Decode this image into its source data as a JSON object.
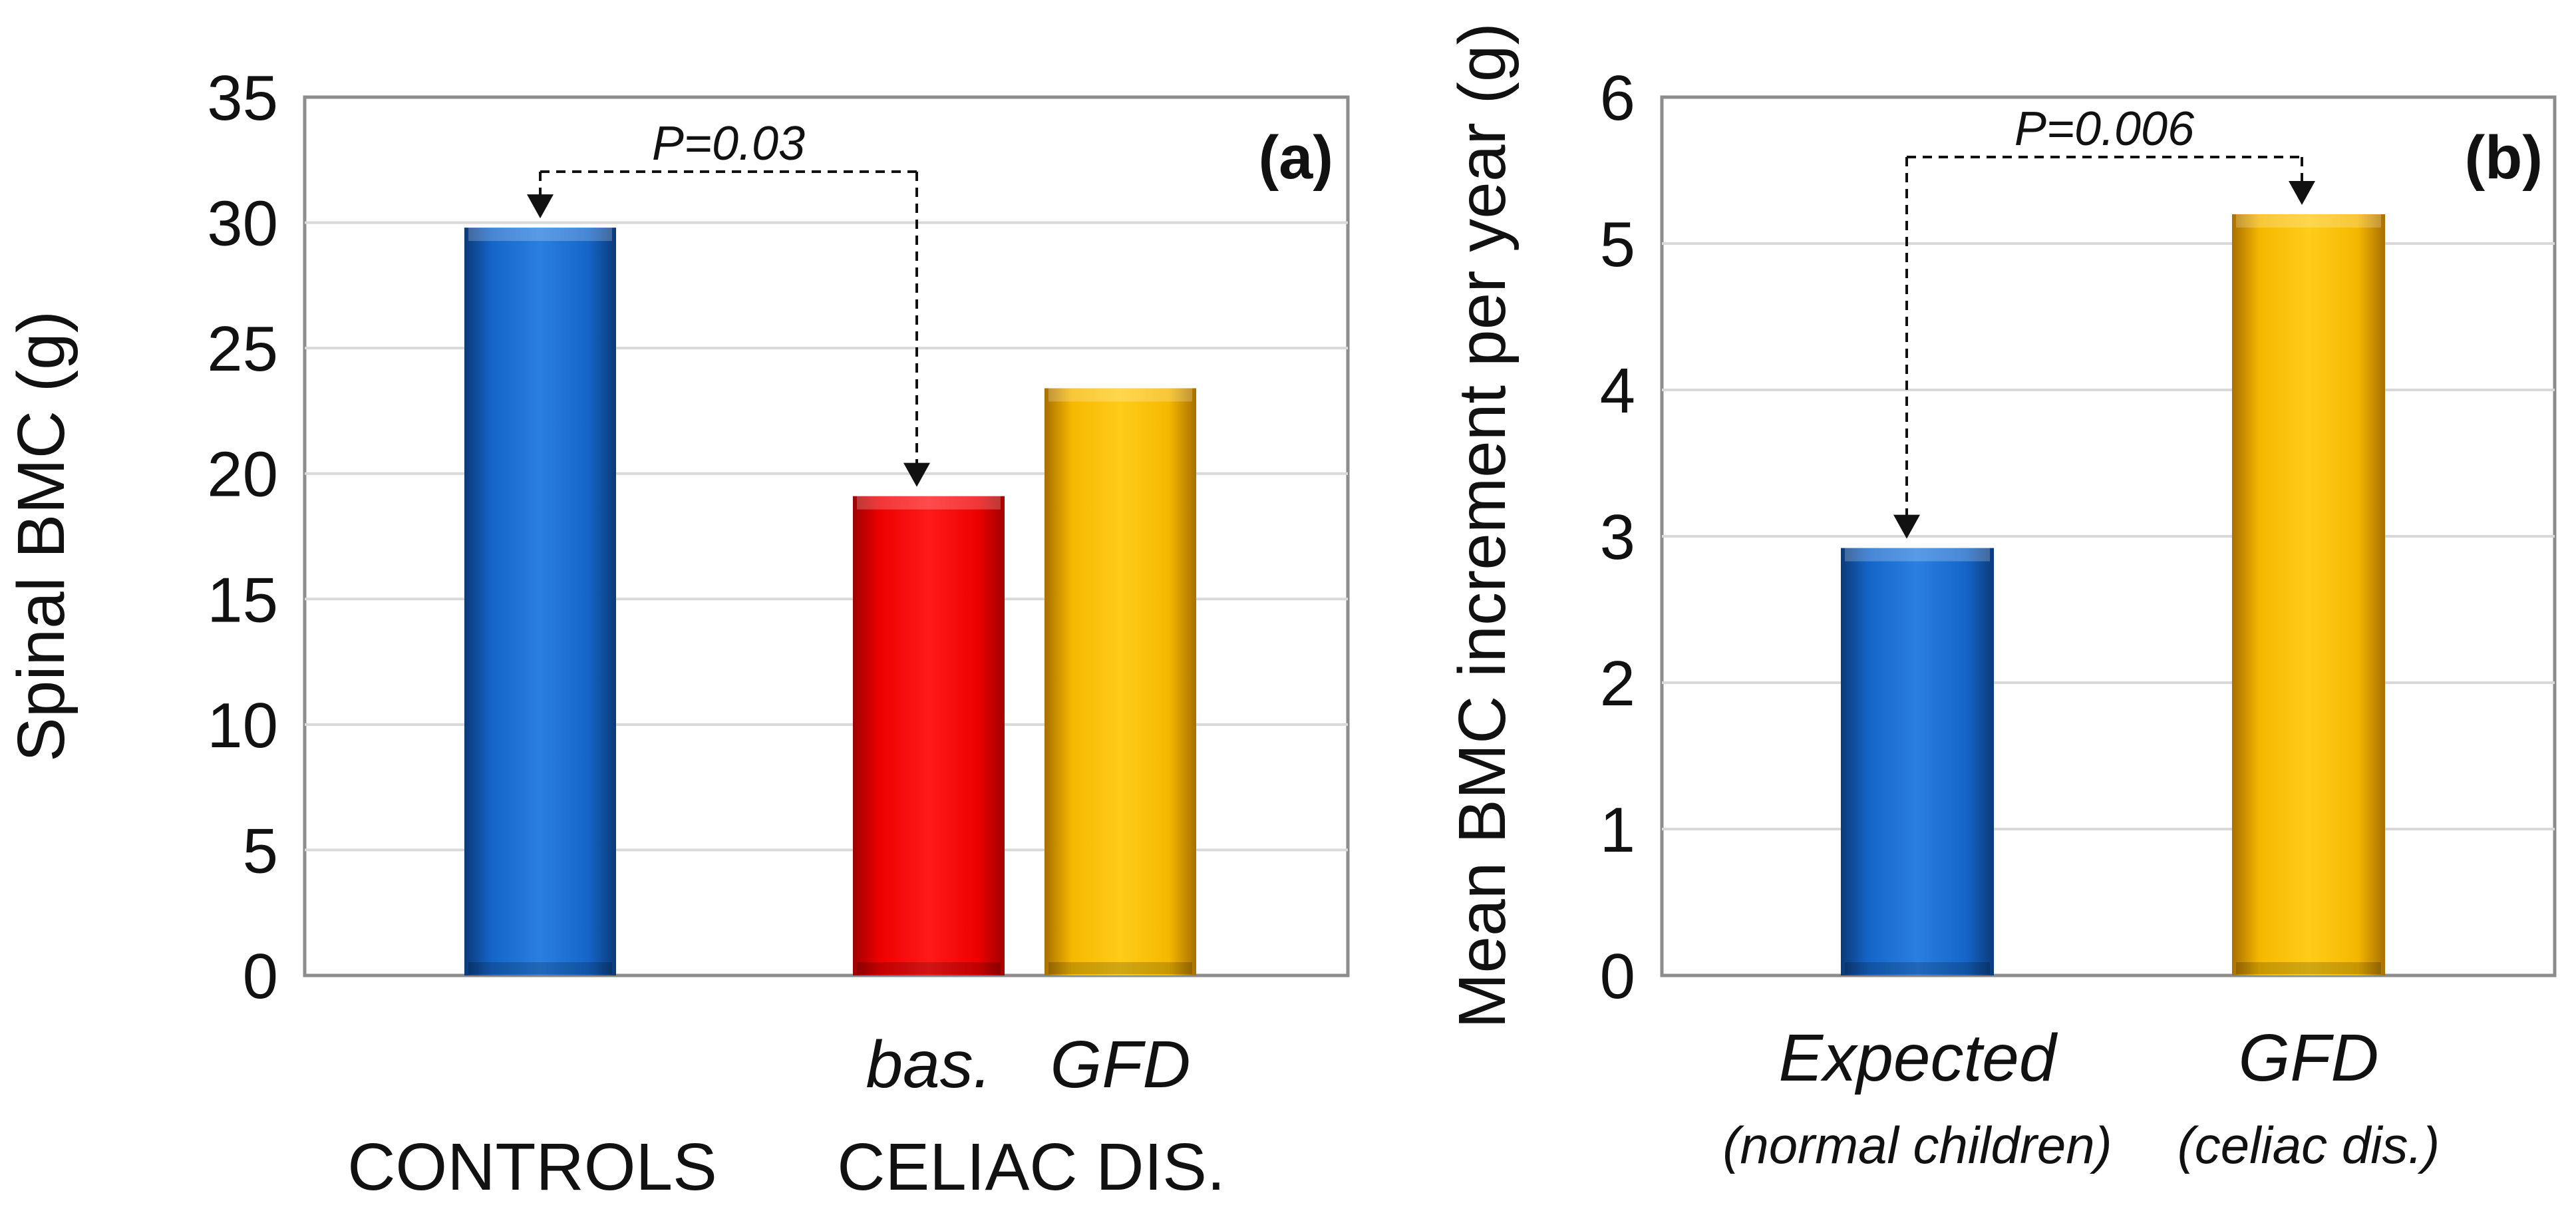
{
  "chart_data": [
    {
      "type": "bar",
      "panel_label": "(a)",
      "ylabel": "Spinal BMC (g)",
      "ylim": [
        0,
        35
      ],
      "yticks": [
        0,
        5,
        10,
        15,
        20,
        25,
        30,
        35
      ],
      "grid": true,
      "categories": [
        "CONTROLS",
        "bas.",
        "GFD"
      ],
      "group_labels": [
        "CONTROLS",
        "CELIAC DIS."
      ],
      "values": [
        29.8,
        19.1,
        23.4
      ],
      "colors": [
        "#1f6fd0",
        "#ff0000",
        "#ffc000"
      ],
      "annotation": {
        "text": "P=0.03",
        "from": 0,
        "to": 1
      }
    },
    {
      "type": "bar",
      "panel_label": "(b)",
      "ylabel": "Mean BMC increment per year (g)",
      "ylim": [
        0,
        6
      ],
      "yticks": [
        0,
        1,
        2,
        3,
        4,
        5,
        6
      ],
      "grid": true,
      "categories": [
        "Expected",
        "GFD"
      ],
      "category_sublabels": [
        "(normal children)",
        "(celiac dis.)"
      ],
      "values": [
        2.92,
        5.2
      ],
      "colors": [
        "#1f6fd0",
        "#ffc000"
      ],
      "annotation": {
        "text": "P=0.006",
        "from": 0,
        "to": 1
      }
    }
  ]
}
